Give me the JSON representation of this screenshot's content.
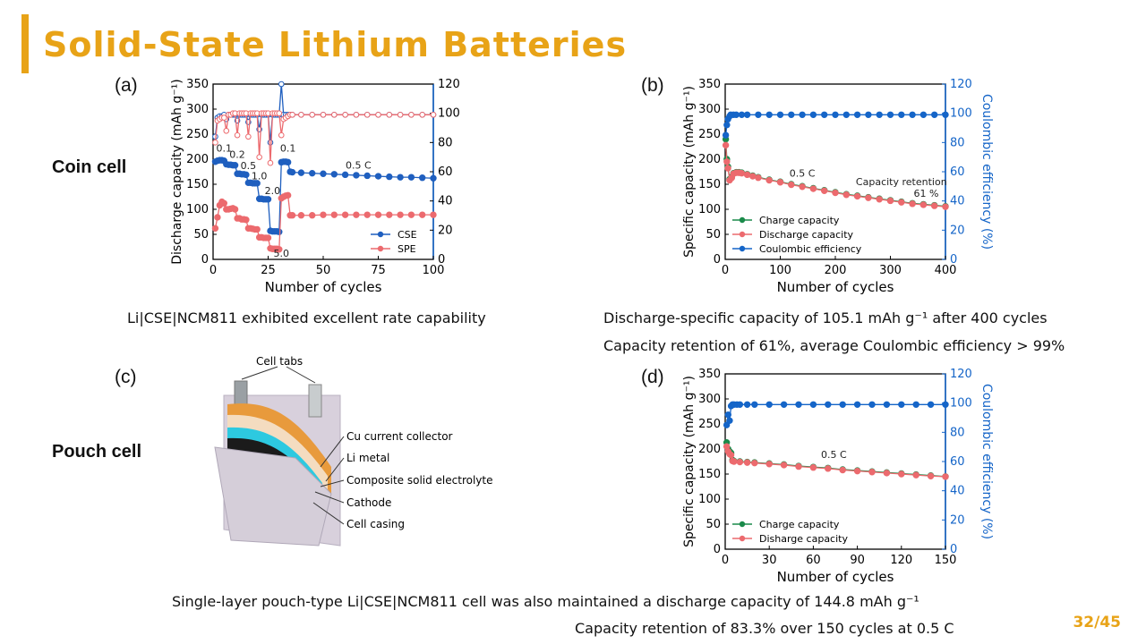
{
  "slide": {
    "title": "Solid-State Lithium Batteries",
    "page": "32/45",
    "accent_color": "#e8a317",
    "row_labels": [
      "Coin cell",
      "Pouch cell"
    ],
    "panel_labels": [
      "(a)",
      "(b)",
      "(c)",
      "(d)"
    ],
    "captions": {
      "a": "Li|CSE|NCM811 exhibited excellent rate capability",
      "b1": "Discharge-specific capacity of 105.1 mAh g⁻¹ after 400 cycles",
      "b2": "Capacity retention of 61%, average Coulombic efficiency > 99%",
      "d1": "Single-layer pouch-type Li|CSE|NCM811 cell was also maintained a discharge capacity of 144.8 mAh g⁻¹",
      "d2": "Capacity retention of 83.3% over 150 cycles at 0.5 C"
    },
    "diagram_c": {
      "labels": [
        "Cell tabs",
        "Cu current collector",
        "Li metal",
        "Composite solid electrolyte",
        "Cathode",
        "Cell casing"
      ]
    }
  },
  "chart_data": [
    {
      "id": "a",
      "type": "scatter",
      "xlabel": "Number of cycles",
      "ylabel": "Discharge capacity (mAh g⁻¹)",
      "y2label": "Coulombic efficiency (%)",
      "xlim": [
        0,
        100
      ],
      "ylim": [
        0,
        350
      ],
      "y2lim": [
        0,
        120
      ],
      "xticks": [
        0,
        25,
        50,
        75,
        100
      ],
      "yticks": [
        0,
        50,
        100,
        150,
        200,
        250,
        300,
        350
      ],
      "y2ticks": [
        0,
        20,
        40,
        60,
        80,
        100,
        120
      ],
      "legend": "bottom-right",
      "rate_labels": [
        {
          "text": "0.1",
          "x": 5,
          "y": 215
        },
        {
          "text": "0.2",
          "x": 11,
          "y": 203
        },
        {
          "text": "0.5",
          "x": 16,
          "y": 180
        },
        {
          "text": "1.0",
          "x": 21,
          "y": 160
        },
        {
          "text": "2.0",
          "x": 27,
          "y": 130
        },
        {
          "text": "5.0",
          "x": 31,
          "y": 5
        },
        {
          "text": "0.1",
          "x": 34,
          "y": 215
        },
        {
          "text": "0.5 C",
          "x": 66,
          "y": 181
        }
      ],
      "series": [
        {
          "name": "CSE",
          "color": "#1f5fbf",
          "axis": "left",
          "x": [
            1,
            2,
            3,
            4,
            5,
            6,
            7,
            8,
            9,
            10,
            11,
            12,
            13,
            14,
            15,
            16,
            17,
            18,
            19,
            20,
            21,
            22,
            23,
            24,
            25,
            26,
            27,
            28,
            29,
            30,
            31,
            32,
            33,
            34,
            35,
            36,
            40,
            45,
            50,
            55,
            60,
            65,
            70,
            75,
            80,
            85,
            90,
            95,
            100
          ],
          "y": [
            195,
            197,
            198,
            198,
            197,
            190,
            189,
            189,
            188,
            188,
            171,
            171,
            170,
            170,
            169,
            153,
            153,
            152,
            152,
            152,
            121,
            121,
            120,
            120,
            120,
            57,
            56,
            56,
            56,
            55,
            194,
            195,
            195,
            194,
            175,
            174,
            173,
            172,
            171,
            170,
            169,
            168,
            167,
            166,
            165,
            164,
            164,
            163,
            162
          ]
        },
        {
          "name": "SPE",
          "color": "#ec6a6e",
          "axis": "left",
          "x": [
            1,
            2,
            3,
            4,
            5,
            6,
            7,
            8,
            9,
            10,
            11,
            12,
            13,
            14,
            15,
            16,
            17,
            18,
            19,
            20,
            21,
            22,
            23,
            24,
            25,
            26,
            27,
            28,
            29,
            30,
            31,
            32,
            33,
            34,
            35,
            36,
            40,
            45,
            50,
            55,
            60,
            65,
            70,
            75,
            80,
            85,
            90,
            95,
            100
          ],
          "y": [
            62,
            84,
            108,
            115,
            112,
            100,
            100,
            101,
            102,
            100,
            82,
            82,
            80,
            80,
            79,
            62,
            62,
            61,
            60,
            60,
            44,
            44,
            43,
            43,
            43,
            22,
            21,
            21,
            21,
            20,
            122,
            125,
            127,
            128,
            88,
            88,
            88,
            88,
            89,
            89,
            89,
            89,
            89,
            89,
            89,
            89,
            89,
            89,
            89
          ]
        },
        {
          "name": "CSE CE",
          "color": "#1f5fbf",
          "axis": "right",
          "hollow": true,
          "x": [
            1,
            2,
            3,
            4,
            5,
            6,
            7,
            8,
            9,
            10,
            11,
            12,
            13,
            14,
            15,
            16,
            17,
            18,
            19,
            20,
            21,
            22,
            23,
            24,
            25,
            26,
            27,
            28,
            29,
            30,
            31,
            32,
            33,
            34,
            35,
            36,
            40,
            45,
            50,
            55,
            60,
            65,
            70,
            75,
            80,
            85,
            90,
            95,
            100
          ],
          "y": [
            84,
            97,
            98,
            98,
            99,
            96,
            99,
            99,
            99,
            99,
            95,
            99,
            99,
            99,
            99,
            94,
            99,
            99,
            99,
            99,
            89,
            99,
            99,
            99,
            99,
            80,
            99,
            99,
            99,
            99,
            120,
            99,
            99,
            99,
            99,
            99,
            99,
            99,
            99,
            99,
            99,
            99,
            99,
            99,
            99,
            99,
            99,
            99,
            99
          ]
        },
        {
          "name": "SPE CE",
          "color": "#ec6a6e",
          "axis": "right",
          "hollow": true,
          "x": [
            1,
            2,
            3,
            4,
            5,
            6,
            7,
            8,
            9,
            10,
            11,
            12,
            13,
            14,
            15,
            16,
            17,
            18,
            19,
            20,
            21,
            22,
            23,
            24,
            25,
            26,
            27,
            28,
            29,
            30,
            31,
            32,
            33,
            34,
            35,
            36,
            40,
            45,
            50,
            55,
            60,
            65,
            70,
            75,
            80,
            85,
            90,
            95,
            100
          ],
          "y": [
            80,
            95,
            96,
            97,
            97,
            88,
            99,
            99,
            100,
            100,
            85,
            100,
            100,
            100,
            100,
            84,
            100,
            100,
            100,
            100,
            70,
            100,
            100,
            100,
            100,
            66,
            100,
            100,
            100,
            100,
            85,
            96,
            97,
            98,
            99,
            99,
            99,
            99,
            99,
            99,
            99,
            99,
            99,
            99,
            99,
            99,
            99,
            99,
            99
          ]
        }
      ],
      "legend_series": [
        "CSE",
        "SPE"
      ]
    },
    {
      "id": "b",
      "type": "scatter",
      "xlabel": "Number of cycles",
      "ylabel": "Specific capacity (mAh g⁻¹)",
      "y2label": "Coulombic efficiency (%)",
      "xlim": [
        0,
        400
      ],
      "ylim": [
        0,
        350
      ],
      "y2lim": [
        0,
        120
      ],
      "xticks": [
        0,
        100,
        200,
        300,
        400
      ],
      "yticks": [
        0,
        50,
        100,
        150,
        200,
        250,
        300,
        350
      ],
      "y2ticks": [
        0,
        20,
        40,
        60,
        80,
        100,
        120
      ],
      "legend": "bottom-left",
      "annotations": [
        {
          "text": "0.5 C",
          "x": 140,
          "y": 165
        },
        {
          "text": "Capacity retention",
          "x": 320,
          "y": 148
        },
        {
          "text": "61 %",
          "x": 365,
          "y": 125
        }
      ],
      "series": [
        {
          "name": "Charge capacity",
          "color": "#1a8a4a",
          "axis": "left",
          "x": [
            1,
            3,
            5,
            8,
            12,
            15,
            20,
            25,
            30,
            40,
            50,
            60,
            80,
            100,
            120,
            140,
            160,
            180,
            200,
            220,
            240,
            260,
            280,
            300,
            320,
            340,
            360,
            380,
            400
          ],
          "y": [
            240,
            200,
            185,
            160,
            165,
            172,
            174,
            174,
            173,
            170,
            167,
            164,
            159,
            155,
            150,
            146,
            142,
            138,
            134,
            130,
            127,
            124,
            121,
            118,
            115,
            112,
            110,
            108,
            106
          ]
        },
        {
          "name": "Discharge capacity",
          "color": "#ec6a6e",
          "axis": "left",
          "x": [
            1,
            3,
            5,
            8,
            12,
            15,
            20,
            25,
            30,
            40,
            50,
            60,
            80,
            100,
            120,
            140,
            160,
            180,
            200,
            220,
            240,
            260,
            280,
            300,
            320,
            340,
            360,
            380,
            400
          ],
          "y": [
            228,
            195,
            182,
            158,
            163,
            171,
            173,
            173,
            172,
            169,
            166,
            163,
            158,
            154,
            149,
            145,
            141,
            137,
            133,
            129,
            126,
            123,
            120,
            117,
            114,
            111,
            109,
            107,
            105.1
          ]
        },
        {
          "name": "Coulombic efficiency",
          "color": "#1565c8",
          "axis": "right",
          "x": [
            1,
            3,
            5,
            8,
            10,
            15,
            20,
            30,
            40,
            60,
            80,
            100,
            120,
            140,
            160,
            180,
            200,
            220,
            240,
            260,
            280,
            300,
            320,
            340,
            360,
            380,
            400
          ],
          "y": [
            85,
            92,
            96,
            98,
            99,
            99,
            99,
            99,
            99,
            99,
            99,
            99,
            99,
            99,
            99,
            99,
            99,
            99,
            99,
            99,
            99,
            99,
            99,
            99,
            99,
            99,
            99
          ]
        }
      ]
    },
    {
      "id": "d",
      "type": "scatter",
      "xlabel": "Number of cycles",
      "ylabel": "Specific capacity (mAh g⁻¹)",
      "y2label": "Coulombic efficiency (%)",
      "xlim": [
        0,
        150
      ],
      "ylim": [
        0,
        350
      ],
      "y2lim": [
        0,
        120
      ],
      "xticks": [
        0,
        30,
        60,
        90,
        120,
        150
      ],
      "yticks": [
        0,
        50,
        100,
        150,
        200,
        250,
        300,
        350
      ],
      "y2ticks": [
        0,
        20,
        40,
        60,
        80,
        100,
        120
      ],
      "legend": "bottom-left",
      "annotations": [
        {
          "text": "0.5 C",
          "x": 74,
          "y": 182
        }
      ],
      "series": [
        {
          "name": "Charge capacity",
          "color": "#1a8a4a",
          "axis": "left",
          "x": [
            1,
            2,
            3,
            4,
            5,
            6,
            10,
            15,
            20,
            30,
            40,
            50,
            60,
            70,
            80,
            90,
            100,
            110,
            120,
            130,
            140,
            150
          ],
          "y": [
            213,
            200,
            195,
            192,
            178,
            176,
            175,
            174,
            173,
            171,
            169,
            166,
            164,
            162,
            159,
            157,
            155,
            153,
            151,
            149,
            147,
            145
          ]
        },
        {
          "name": "Disharge capacity",
          "color": "#ec6a6e",
          "axis": "left",
          "x": [
            1,
            2,
            3,
            4,
            5,
            6,
            10,
            15,
            20,
            30,
            40,
            50,
            60,
            70,
            80,
            90,
            100,
            110,
            120,
            130,
            140,
            150
          ],
          "y": [
            205,
            195,
            190,
            188,
            176,
            175,
            174,
            173,
            172,
            170,
            168,
            165,
            163,
            161,
            158,
            156,
            154,
            152,
            150,
            148,
            146,
            144.8
          ]
        },
        {
          "name": "CE",
          "color": "#1565c8",
          "axis": "right",
          "x": [
            1,
            2,
            3,
            4,
            5,
            6,
            8,
            10,
            15,
            20,
            30,
            40,
            50,
            60,
            70,
            80,
            90,
            100,
            110,
            120,
            130,
            140,
            150
          ],
          "y": [
            85,
            92,
            88,
            98,
            99,
            99,
            99,
            99,
            99,
            99,
            99,
            99,
            99,
            99,
            99,
            99,
            99,
            99,
            99,
            99,
            99,
            99,
            99
          ]
        }
      ],
      "legend_series": [
        "Charge capacity",
        "Disharge capacity"
      ]
    }
  ]
}
